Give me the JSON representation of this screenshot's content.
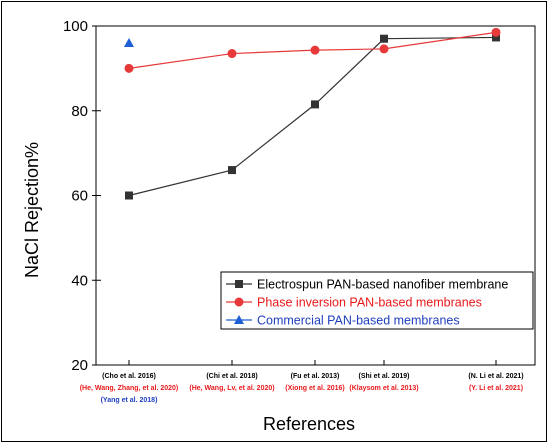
{
  "chart_data": {
    "type": "line",
    "xlabel": "References",
    "ylabel": "NaCl Rejection%",
    "ylim": [
      20,
      100
    ],
    "yticks": [
      "20",
      "40",
      "60",
      "80",
      "100"
    ],
    "grid": false,
    "legend_position": "bottom-right",
    "category_labels": [
      {
        "lines": [
          {
            "text": "(Cho et al. 2016)",
            "color": "#000000"
          },
          {
            "text": "(He, Wang, Zhang, et al. 2020)",
            "color": "#e8191b"
          },
          {
            "text": "(Yang et al. 2018)",
            "color": "#1f3fbf"
          }
        ]
      },
      {
        "lines": [
          {
            "text": "(Chi et al. 2018)",
            "color": "#000000"
          },
          {
            "text": "(He, Wang, Lv, et al. 2020)",
            "color": "#e8191b"
          }
        ]
      },
      {
        "lines": [
          {
            "text": "(Fu et al. 2013)",
            "color": "#000000"
          },
          {
            "text": "(Xiong et al. 2016)",
            "color": "#e8191b"
          }
        ]
      },
      {
        "lines": [
          {
            "text": "(Shi et al. 2019)",
            "color": "#000000"
          },
          {
            "text": "(Klaysom et al. 2013)",
            "color": "#e8191b"
          }
        ]
      },
      {
        "lines": [
          {
            "text": "(N. Li et al. 2021)",
            "color": "#000000"
          },
          {
            "text": "(Y. Li et al. 2021)",
            "color": "#e8191b"
          }
        ]
      }
    ],
    "series": [
      {
        "name": "Electrospun PAN-based nanofiber membrane",
        "color": "#333333",
        "line_color": "#333333",
        "text_color": "#000000",
        "marker": "square",
        "values": [
          60,
          66,
          81.5,
          97,
          97.3
        ]
      },
      {
        "name": "Phase inversion PAN-based membranes",
        "color": "#e8393a",
        "line_color": "#e8393a",
        "text_color": "#e8191b",
        "marker": "circle",
        "values": [
          90,
          93.5,
          94.3,
          94.6,
          98.5
        ]
      },
      {
        "name": "Commercial PAN-based membranes",
        "color": "#1f5fd6",
        "line_color": "#1f5fd6",
        "text_color": "#1f3fbf",
        "marker": "triangle",
        "values": [
          96,
          null,
          null,
          null,
          null
        ]
      }
    ]
  }
}
